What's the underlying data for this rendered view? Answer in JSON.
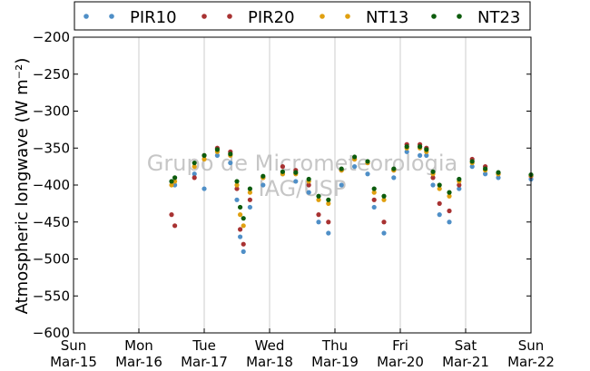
{
  "chart_data": {
    "type": "scatter",
    "ylabel": "Atmospheric longwave",
    "ylabel_unit": "(W m⁻²)",
    "ylim": [
      -600,
      -200
    ],
    "yticks": [
      -200,
      -250,
      -300,
      -350,
      -400,
      -450,
      -500,
      -550,
      -600
    ],
    "xlim": [
      0,
      7
    ],
    "xticks": [
      {
        "day": "Sun",
        "date": "Mar-15"
      },
      {
        "day": "Mon",
        "date": "Mar-16"
      },
      {
        "day": "Tue",
        "date": "Mar-17"
      },
      {
        "day": "Wed",
        "date": "Mar-18"
      },
      {
        "day": "Thu",
        "date": "Mar-19"
      },
      {
        "day": "Fri",
        "date": "Mar-20"
      },
      {
        "day": "Sat",
        "date": "Mar-21"
      },
      {
        "day": "Sun",
        "date": "Mar-22"
      }
    ],
    "grid": "x",
    "legend_position": "top",
    "watermark": [
      "Grupo de Micrometeorologia",
      "IAG/USP"
    ],
    "series": [
      {
        "name": "PIR10",
        "color": "#4f8fc7",
        "x": [
          1.5,
          1.55,
          1.85,
          2.0,
          2.2,
          2.4,
          2.5,
          2.55,
          2.6,
          2.7,
          2.9,
          3.2,
          3.4,
          3.6,
          3.75,
          3.9,
          4.1,
          4.3,
          4.5,
          4.6,
          4.75,
          4.9,
          5.1,
          5.3,
          5.4,
          5.5,
          5.6,
          5.75,
          5.9,
          6.1,
          6.3,
          6.5,
          7.0
        ],
        "y": [
          -395,
          -400,
          -385,
          -405,
          -360,
          -370,
          -420,
          -470,
          -490,
          -430,
          -400,
          -385,
          -395,
          -410,
          -450,
          -465,
          -400,
          -375,
          -385,
          -430,
          -465,
          -390,
          -355,
          -360,
          -360,
          -400,
          -440,
          -450,
          -405,
          -375,
          -385,
          -390,
          -392
        ]
      },
      {
        "name": "PIR20",
        "color": "#a83232",
        "x": [
          1.5,
          1.55,
          1.85,
          2.0,
          2.2,
          2.4,
          2.5,
          2.55,
          2.6,
          2.7,
          2.9,
          3.2,
          3.4,
          3.6,
          3.75,
          3.9,
          4.1,
          4.3,
          4.5,
          4.6,
          4.75,
          4.9,
          5.1,
          5.3,
          5.4,
          5.5,
          5.6,
          5.75,
          5.9,
          6.1,
          6.3,
          6.5,
          7.0
        ],
        "y": [
          -440,
          -455,
          -390,
          -360,
          -350,
          -355,
          -405,
          -460,
          -480,
          -420,
          -390,
          -375,
          -380,
          -400,
          -440,
          -450,
          -380,
          -365,
          -370,
          -420,
          -450,
          -380,
          -345,
          -345,
          -350,
          -390,
          -425,
          -435,
          -400,
          -365,
          -375,
          -385,
          -388
        ]
      },
      {
        "name": "NT13",
        "color": "#e0a010",
        "x": [
          1.5,
          1.55,
          1.85,
          2.0,
          2.2,
          2.4,
          2.5,
          2.55,
          2.6,
          2.7,
          2.9,
          3.2,
          3.4,
          3.6,
          3.75,
          3.9,
          4.1,
          4.3,
          4.5,
          4.6,
          4.75,
          4.9,
          5.1,
          5.3,
          5.4,
          5.5,
          5.6,
          5.75,
          5.9,
          6.1,
          6.3,
          6.5,
          7.0
        ],
        "y": [
          -400,
          -395,
          -375,
          -365,
          -355,
          -360,
          -400,
          -440,
          -455,
          -410,
          -390,
          -385,
          -385,
          -395,
          -420,
          -425,
          -380,
          -365,
          -370,
          -410,
          -420,
          -380,
          -350,
          -350,
          -355,
          -385,
          -405,
          -415,
          -395,
          -370,
          -380,
          -385,
          -387
        ]
      },
      {
        "name": "NT23",
        "color": "#0d5c0d",
        "x": [
          1.5,
          1.55,
          1.85,
          2.0,
          2.2,
          2.4,
          2.5,
          2.55,
          2.6,
          2.7,
          2.9,
          3.2,
          3.4,
          3.6,
          3.75,
          3.9,
          4.1,
          4.3,
          4.5,
          4.6,
          4.75,
          4.9,
          5.1,
          5.3,
          5.4,
          5.5,
          5.6,
          5.75,
          5.9,
          6.1,
          6.3,
          6.5,
          7.0
        ],
        "y": [
          -395,
          -390,
          -370,
          -360,
          -352,
          -358,
          -395,
          -430,
          -445,
          -405,
          -388,
          -382,
          -383,
          -392,
          -415,
          -420,
          -378,
          -362,
          -368,
          -405,
          -415,
          -378,
          -348,
          -348,
          -352,
          -382,
          -400,
          -410,
          -392,
          -368,
          -378,
          -383,
          -386
        ]
      }
    ]
  }
}
